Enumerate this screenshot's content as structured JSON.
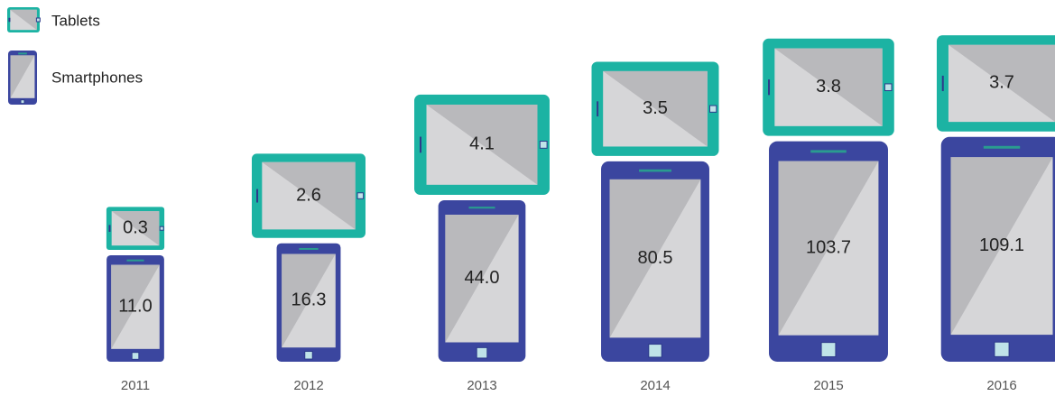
{
  "chart_data": {
    "type": "pictogram-stack",
    "categories": [
      "2011",
      "2012",
      "2013",
      "2014",
      "2015",
      "2016"
    ],
    "series": [
      {
        "name": "Smartphones",
        "color": "#3b469f",
        "values": [
          11.0,
          16.3,
          44.0,
          80.5,
          103.7,
          109.1
        ],
        "value_labels": [
          "11.0",
          "16.3",
          "44.0",
          "80.5",
          "103.7",
          "109.1"
        ]
      },
      {
        "name": "Tablets",
        "color": "#1cb3a3",
        "values": [
          0.3,
          2.6,
          4.1,
          3.5,
          3.8,
          3.7
        ],
        "value_labels": [
          "0.3",
          "2.6",
          "4.1",
          "3.5",
          "3.8",
          "3.7"
        ]
      }
    ]
  }
}
